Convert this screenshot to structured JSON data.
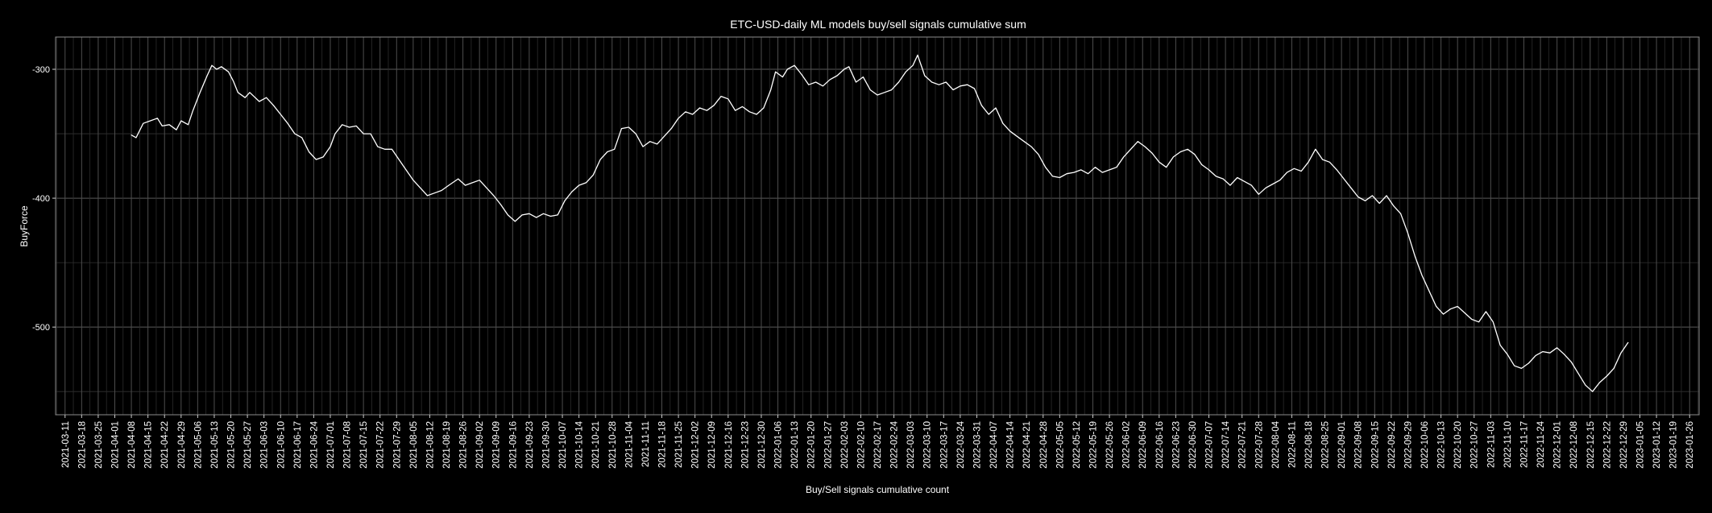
{
  "chart_data": {
    "type": "line",
    "title": "ETC-USD-daily ML models buy/sell signals cumulative sum",
    "xlabel": "Buy/Sell signals cumulative count",
    "ylabel": "BuyForce",
    "xlim": [
      "2021-03-07",
      "2023-01-30"
    ],
    "ylim": [
      -568,
      -275
    ],
    "yticks": [
      -300,
      -400,
      -500
    ],
    "xtick_labels": [
      "2021-03-11",
      "2021-03-18",
      "2021-03-25",
      "2021-04-01",
      "2021-04-08",
      "2021-04-15",
      "2021-04-22",
      "2021-04-29",
      "2021-05-06",
      "2021-05-13",
      "2021-05-20",
      "2021-05-27",
      "2021-06-03",
      "2021-06-10",
      "2021-06-17",
      "2021-06-24",
      "2021-07-01",
      "2021-07-08",
      "2021-07-15",
      "2021-07-22",
      "2021-07-29",
      "2021-08-05",
      "2021-08-12",
      "2021-08-19",
      "2021-08-26",
      "2021-09-02",
      "2021-09-09",
      "2021-09-16",
      "2021-09-23",
      "2021-09-30",
      "2021-10-07",
      "2021-10-14",
      "2021-10-21",
      "2021-10-28",
      "2021-11-04",
      "2021-11-11",
      "2021-11-18",
      "2021-11-25",
      "2021-12-02",
      "2021-12-09",
      "2021-12-16",
      "2021-12-23",
      "2021-12-30",
      "2022-01-06",
      "2022-01-13",
      "2022-01-20",
      "2022-01-27",
      "2022-02-03",
      "2022-02-10",
      "2022-02-17",
      "2022-02-24",
      "2022-03-03",
      "2022-03-10",
      "2022-03-17",
      "2022-03-24",
      "2022-03-31",
      "2022-04-07",
      "2022-04-14",
      "2022-04-21",
      "2022-04-28",
      "2022-05-05",
      "2022-05-12",
      "2022-05-19",
      "2022-05-26",
      "2022-06-02",
      "2022-06-09",
      "2022-06-16",
      "2022-06-23",
      "2022-06-30",
      "2022-07-07",
      "2022-07-14",
      "2022-07-21",
      "2022-07-28",
      "2022-08-04",
      "2022-08-11",
      "2022-08-18",
      "2022-08-25",
      "2022-09-01",
      "2022-09-08",
      "2022-09-15",
      "2022-09-22",
      "2022-09-29",
      "2022-10-06",
      "2022-10-13",
      "2022-10-20",
      "2022-10-27",
      "2022-11-03",
      "2022-11-10",
      "2022-11-17",
      "2022-11-24",
      "2022-12-01",
      "2022-12-08",
      "2022-12-15",
      "2022-12-22",
      "2022-12-29",
      "2023-01-05",
      "2023-01-12",
      "2023-01-19",
      "2023-01-26"
    ],
    "grid": true,
    "series": [
      {
        "color": "#ffffff",
        "points": [
          [
            "2021-04-08",
            -351
          ],
          [
            "2021-04-10",
            -353
          ],
          [
            "2021-04-13",
            -342
          ],
          [
            "2021-04-16",
            -340
          ],
          [
            "2021-04-19",
            -338
          ],
          [
            "2021-04-21",
            -344
          ],
          [
            "2021-04-24",
            -343
          ],
          [
            "2021-04-27",
            -347
          ],
          [
            "2021-04-29",
            -340
          ],
          [
            "2021-05-02",
            -343
          ],
          [
            "2021-05-04",
            -332
          ],
          [
            "2021-05-07",
            -318
          ],
          [
            "2021-05-10",
            -305
          ],
          [
            "2021-05-12",
            -297
          ],
          [
            "2021-05-14",
            -300
          ],
          [
            "2021-05-16",
            -298
          ],
          [
            "2021-05-19",
            -302
          ],
          [
            "2021-05-21",
            -309
          ],
          [
            "2021-05-23",
            -318
          ],
          [
            "2021-05-26",
            -322
          ],
          [
            "2021-05-28",
            -318
          ],
          [
            "2021-06-01",
            -325
          ],
          [
            "2021-06-04",
            -322
          ],
          [
            "2021-06-07",
            -328
          ],
          [
            "2021-06-10",
            -335
          ],
          [
            "2021-06-13",
            -342
          ],
          [
            "2021-06-16",
            -350
          ],
          [
            "2021-06-19",
            -353
          ],
          [
            "2021-06-22",
            -364
          ],
          [
            "2021-06-25",
            -370
          ],
          [
            "2021-06-28",
            -368
          ],
          [
            "2021-07-01",
            -360
          ],
          [
            "2021-07-03",
            -350
          ],
          [
            "2021-07-06",
            -343
          ],
          [
            "2021-07-09",
            -345
          ],
          [
            "2021-07-12",
            -344
          ],
          [
            "2021-07-15",
            -350
          ],
          [
            "2021-07-18",
            -350
          ],
          [
            "2021-07-21",
            -360
          ],
          [
            "2021-07-24",
            -362
          ],
          [
            "2021-07-27",
            -362
          ],
          [
            "2021-07-30",
            -370
          ],
          [
            "2021-08-02",
            -378
          ],
          [
            "2021-08-05",
            -386
          ],
          [
            "2021-08-08",
            -392
          ],
          [
            "2021-08-11",
            -398
          ],
          [
            "2021-08-14",
            -396
          ],
          [
            "2021-08-17",
            -394
          ],
          [
            "2021-08-20",
            -390
          ],
          [
            "2021-08-24",
            -385
          ],
          [
            "2021-08-27",
            -390
          ],
          [
            "2021-08-30",
            -388
          ],
          [
            "2021-09-02",
            -386
          ],
          [
            "2021-09-05",
            -392
          ],
          [
            "2021-09-08",
            -398
          ],
          [
            "2021-09-11",
            -405
          ],
          [
            "2021-09-14",
            -413
          ],
          [
            "2021-09-17",
            -418
          ],
          [
            "2021-09-20",
            -413
          ],
          [
            "2021-09-23",
            -412
          ],
          [
            "2021-09-26",
            -415
          ],
          [
            "2021-09-29",
            -412
          ],
          [
            "2021-10-02",
            -414
          ],
          [
            "2021-10-05",
            -413
          ],
          [
            "2021-10-08",
            -402
          ],
          [
            "2021-10-11",
            -395
          ],
          [
            "2021-10-14",
            -390
          ],
          [
            "2021-10-17",
            -388
          ],
          [
            "2021-10-20",
            -382
          ],
          [
            "2021-10-23",
            -370
          ],
          [
            "2021-10-26",
            -364
          ],
          [
            "2021-10-29",
            -362
          ],
          [
            "2021-11-01",
            -346
          ],
          [
            "2021-11-04",
            -345
          ],
          [
            "2021-11-07",
            -350
          ],
          [
            "2021-11-10",
            -360
          ],
          [
            "2021-11-13",
            -356
          ],
          [
            "2021-11-16",
            -358
          ],
          [
            "2021-11-19",
            -352
          ],
          [
            "2021-11-22",
            -346
          ],
          [
            "2021-11-25",
            -338
          ],
          [
            "2021-11-28",
            -333
          ],
          [
            "2021-12-01",
            -335
          ],
          [
            "2021-12-04",
            -330
          ],
          [
            "2021-12-07",
            -332
          ],
          [
            "2021-12-10",
            -328
          ],
          [
            "2021-12-13",
            -321
          ],
          [
            "2021-12-16",
            -323
          ],
          [
            "2021-12-19",
            -332
          ],
          [
            "2021-12-22",
            -329
          ],
          [
            "2021-12-25",
            -333
          ],
          [
            "2021-12-28",
            -335
          ],
          [
            "2021-12-31",
            -330
          ],
          [
            "2022-01-03",
            -316
          ],
          [
            "2022-01-05",
            -302
          ],
          [
            "2022-01-08",
            -306
          ],
          [
            "2022-01-10",
            -300
          ],
          [
            "2022-01-13",
            -297
          ],
          [
            "2022-01-16",
            -304
          ],
          [
            "2022-01-19",
            -312
          ],
          [
            "2022-01-22",
            -310
          ],
          [
            "2022-01-25",
            -313
          ],
          [
            "2022-01-28",
            -308
          ],
          [
            "2022-01-31",
            -305
          ],
          [
            "2022-02-03",
            -300
          ],
          [
            "2022-02-05",
            -298
          ],
          [
            "2022-02-08",
            -310
          ],
          [
            "2022-02-11",
            -306
          ],
          [
            "2022-02-14",
            -316
          ],
          [
            "2022-02-17",
            -320
          ],
          [
            "2022-02-20",
            -318
          ],
          [
            "2022-02-23",
            -316
          ],
          [
            "2022-02-26",
            -310
          ],
          [
            "2022-03-01",
            -302
          ],
          [
            "2022-03-04",
            -297
          ],
          [
            "2022-03-06",
            -289
          ],
          [
            "2022-03-09",
            -305
          ],
          [
            "2022-03-12",
            -310
          ],
          [
            "2022-03-15",
            -312
          ],
          [
            "2022-03-18",
            -310
          ],
          [
            "2022-03-21",
            -316
          ],
          [
            "2022-03-24",
            -313
          ],
          [
            "2022-03-27",
            -312
          ],
          [
            "2022-03-30",
            -315
          ],
          [
            "2022-04-02",
            -328
          ],
          [
            "2022-04-05",
            -335
          ],
          [
            "2022-04-08",
            -330
          ],
          [
            "2022-04-11",
            -342
          ],
          [
            "2022-04-14",
            -348
          ],
          [
            "2022-04-17",
            -352
          ],
          [
            "2022-04-20",
            -356
          ],
          [
            "2022-04-23",
            -360
          ],
          [
            "2022-04-26",
            -366
          ],
          [
            "2022-04-29",
            -376
          ],
          [
            "2022-05-02",
            -383
          ],
          [
            "2022-05-05",
            -384
          ],
          [
            "2022-05-08",
            -381
          ],
          [
            "2022-05-11",
            -380
          ],
          [
            "2022-05-14",
            -378
          ],
          [
            "2022-05-17",
            -381
          ],
          [
            "2022-05-20",
            -376
          ],
          [
            "2022-05-23",
            -380
          ],
          [
            "2022-05-26",
            -378
          ],
          [
            "2022-05-29",
            -376
          ],
          [
            "2022-06-01",
            -368
          ],
          [
            "2022-06-04",
            -362
          ],
          [
            "2022-06-07",
            -356
          ],
          [
            "2022-06-10",
            -360
          ],
          [
            "2022-06-13",
            -365
          ],
          [
            "2022-06-16",
            -372
          ],
          [
            "2022-06-19",
            -376
          ],
          [
            "2022-06-22",
            -368
          ],
          [
            "2022-06-25",
            -364
          ],
          [
            "2022-06-28",
            -362
          ],
          [
            "2022-07-01",
            -366
          ],
          [
            "2022-07-04",
            -374
          ],
          [
            "2022-07-07",
            -378
          ],
          [
            "2022-07-10",
            -383
          ],
          [
            "2022-07-13",
            -385
          ],
          [
            "2022-07-16",
            -390
          ],
          [
            "2022-07-19",
            -384
          ],
          [
            "2022-07-22",
            -387
          ],
          [
            "2022-07-25",
            -390
          ],
          [
            "2022-07-28",
            -397
          ],
          [
            "2022-07-31",
            -392
          ],
          [
            "2022-08-03",
            -389
          ],
          [
            "2022-08-06",
            -386
          ],
          [
            "2022-08-09",
            -380
          ],
          [
            "2022-08-12",
            -377
          ],
          [
            "2022-08-15",
            -379
          ],
          [
            "2022-08-18",
            -372
          ],
          [
            "2022-08-21",
            -362
          ],
          [
            "2022-08-24",
            -370
          ],
          [
            "2022-08-27",
            -372
          ],
          [
            "2022-08-30",
            -378
          ],
          [
            "2022-09-02",
            -385
          ],
          [
            "2022-09-05",
            -392
          ],
          [
            "2022-09-08",
            -399
          ],
          [
            "2022-09-11",
            -402
          ],
          [
            "2022-09-14",
            -398
          ],
          [
            "2022-09-17",
            -404
          ],
          [
            "2022-09-20",
            -398
          ],
          [
            "2022-09-23",
            -406
          ],
          [
            "2022-09-26",
            -412
          ],
          [
            "2022-09-29",
            -427
          ],
          [
            "2022-10-02",
            -445
          ],
          [
            "2022-10-05",
            -460
          ],
          [
            "2022-10-08",
            -472
          ],
          [
            "2022-10-11",
            -484
          ],
          [
            "2022-10-14",
            -490
          ],
          [
            "2022-10-17",
            -486
          ],
          [
            "2022-10-20",
            -484
          ],
          [
            "2022-10-23",
            -489
          ],
          [
            "2022-10-26",
            -494
          ],
          [
            "2022-10-29",
            -496
          ],
          [
            "2022-11-01",
            -488
          ],
          [
            "2022-11-04",
            -496
          ],
          [
            "2022-11-07",
            -514
          ],
          [
            "2022-11-10",
            -521
          ],
          [
            "2022-11-13",
            -530
          ],
          [
            "2022-11-16",
            -532
          ],
          [
            "2022-11-19",
            -528
          ],
          [
            "2022-11-22",
            -522
          ],
          [
            "2022-11-25",
            -519
          ],
          [
            "2022-11-28",
            -520
          ],
          [
            "2022-12-01",
            -516
          ],
          [
            "2022-12-04",
            -521
          ],
          [
            "2022-12-07",
            -527
          ],
          [
            "2022-12-10",
            -536
          ],
          [
            "2022-12-13",
            -545
          ],
          [
            "2022-12-16",
            -550
          ],
          [
            "2022-12-19",
            -543
          ],
          [
            "2022-12-22",
            -538
          ],
          [
            "2022-12-25",
            -532
          ],
          [
            "2022-12-28",
            -520
          ],
          [
            "2022-12-31",
            -512
          ]
        ]
      }
    ]
  }
}
